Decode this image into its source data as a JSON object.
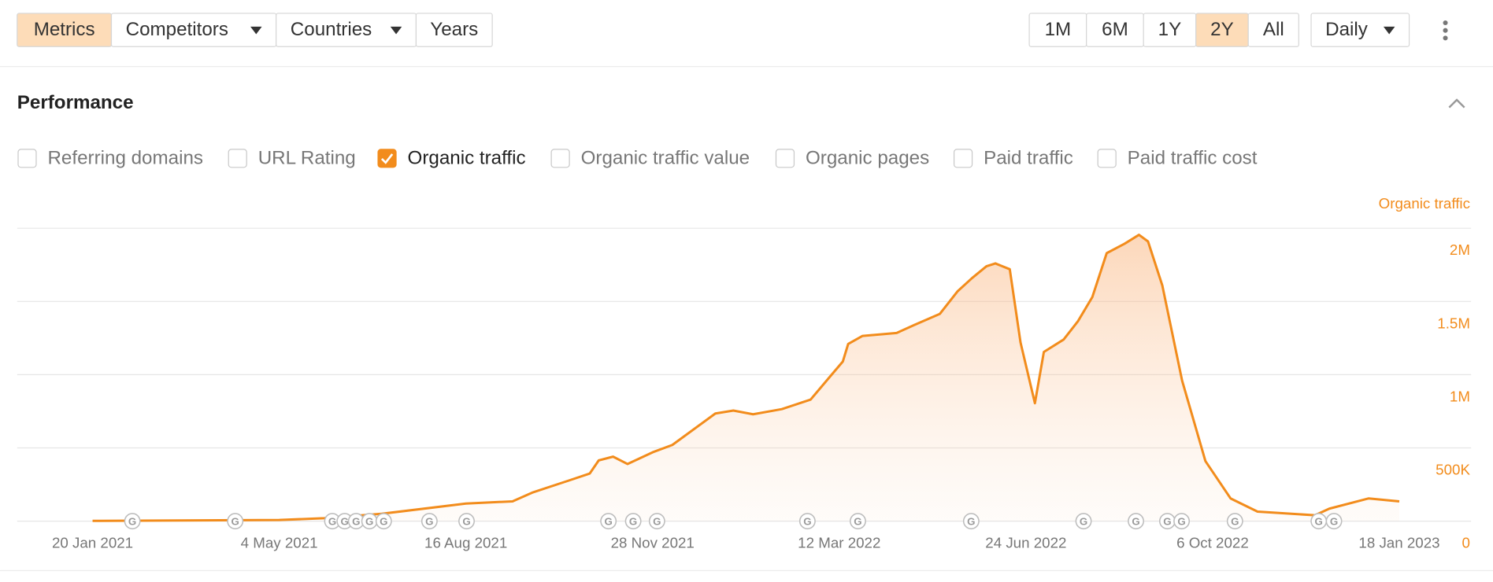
{
  "toolbar": {
    "tabs": [
      {
        "label": "Metrics",
        "active": true,
        "dropdown": false
      },
      {
        "label": "Competitors",
        "active": false,
        "dropdown": true
      },
      {
        "label": "Countries",
        "active": false,
        "dropdown": true
      },
      {
        "label": "Years",
        "active": false,
        "dropdown": false
      }
    ],
    "ranges": [
      {
        "label": "1M",
        "active": false
      },
      {
        "label": "6M",
        "active": false
      },
      {
        "label": "1Y",
        "active": false
      },
      {
        "label": "2Y",
        "active": true
      },
      {
        "label": "All",
        "active": false
      }
    ],
    "interval": "Daily"
  },
  "section": {
    "title": "Performance"
  },
  "metrics": [
    {
      "label": "Referring domains",
      "checked": false
    },
    {
      "label": "URL Rating",
      "checked": false
    },
    {
      "label": "Organic traffic",
      "checked": true
    },
    {
      "label": "Organic traffic value",
      "checked": false
    },
    {
      "label": "Organic pages",
      "checked": false
    },
    {
      "label": "Paid traffic",
      "checked": false
    },
    {
      "label": "Paid traffic cost",
      "checked": false
    }
  ],
  "update_marker": "G",
  "chart_data": {
    "type": "area",
    "ylabel": "Organic traffic",
    "color": "#f28c1c",
    "grid": true,
    "x": [
      "2021-01-20",
      "2021-05-04",
      "2021-05-29",
      "2021-06-30",
      "2021-08-16",
      "2021-09-11",
      "2021-09-22",
      "2021-10-13",
      "2021-10-24",
      "2021-10-29",
      "2021-11-06",
      "2021-11-14",
      "2021-11-28",
      "2021-12-09",
      "2022-01-02",
      "2022-01-12",
      "2022-01-23",
      "2022-02-08",
      "2022-02-24",
      "2022-03-06",
      "2022-03-14",
      "2022-03-17",
      "2022-03-25",
      "2022-04-13",
      "2022-04-23",
      "2022-05-07",
      "2022-05-17",
      "2022-05-25",
      "2022-06-02",
      "2022-06-07",
      "2022-06-15",
      "2022-06-21",
      "2022-06-29",
      "2022-07-04",
      "2022-07-15",
      "2022-07-23",
      "2022-07-31",
      "2022-08-08",
      "2022-08-18",
      "2022-08-26",
      "2022-08-31",
      "2022-09-08",
      "2022-09-19",
      "2022-10-02",
      "2022-10-16",
      "2022-10-31",
      "2022-12-02",
      "2022-12-10",
      "2023-01-01",
      "2023-01-18"
    ],
    "values": [
      2000,
      8000,
      20000,
      50000,
      120000,
      135000,
      195000,
      280000,
      325000,
      415000,
      440000,
      390000,
      470000,
      520000,
      735000,
      755000,
      730000,
      765000,
      830000,
      975000,
      1090000,
      1210000,
      1265000,
      1285000,
      1340000,
      1415000,
      1570000,
      1660000,
      1740000,
      1760000,
      1720000,
      1220000,
      805000,
      1155000,
      1240000,
      1365000,
      1530000,
      1830000,
      1895000,
      1955000,
      1910000,
      1610000,
      960000,
      410000,
      155000,
      65000,
      40000,
      85000,
      155000,
      135000
    ],
    "xlim": [
      "2020-12-09",
      "2023-02-27"
    ],
    "xticks": [
      {
        "value": "2021-01-20",
        "label": "20 Jan 2021"
      },
      {
        "value": "2021-05-04",
        "label": "4 May 2021"
      },
      {
        "value": "2021-08-16",
        "label": "16 Aug 2021"
      },
      {
        "value": "2021-11-28",
        "label": "28 Nov 2021"
      },
      {
        "value": "2022-03-12",
        "label": "12 Mar 2022"
      },
      {
        "value": "2022-06-24",
        "label": "24 Jun 2022"
      },
      {
        "value": "2022-10-06",
        "label": "6 Oct 2022"
      },
      {
        "value": "2023-01-18",
        "label": "18 Jan 2023"
      }
    ],
    "ylim": [
      0,
      2000000
    ],
    "yticks": [
      0,
      {
        "value": 500000,
        "label": "500K"
      },
      {
        "value": 1000000,
        "label": "1M"
      },
      {
        "value": 1500000,
        "label": "1.5M"
      },
      {
        "value": 2000000,
        "label": "2M"
      }
    ]
  }
}
